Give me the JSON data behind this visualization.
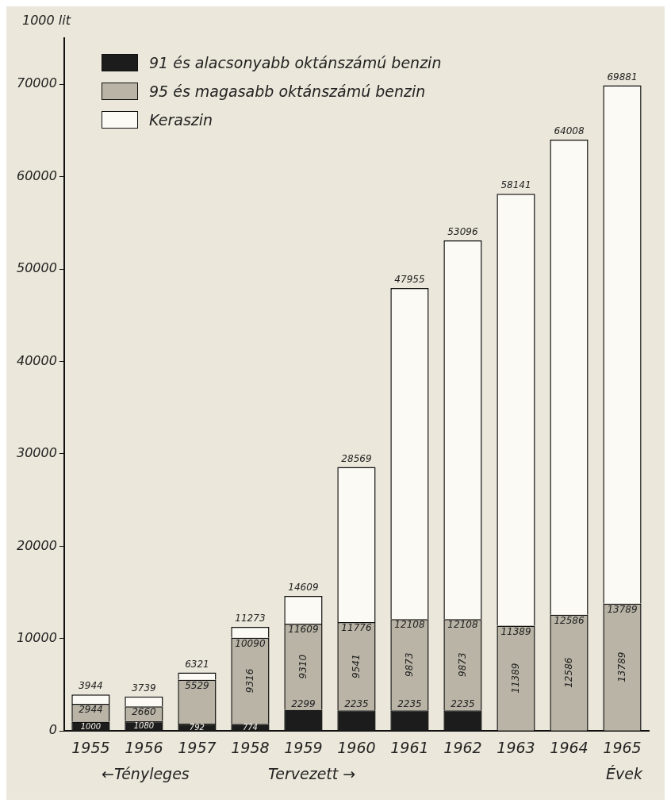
{
  "chart_data": {
    "type": "bar",
    "stacked": true,
    "ylabel": "1000 lit",
    "xlabel": "Évek",
    "categories": [
      "1955",
      "1956",
      "1957",
      "1958",
      "1959",
      "1960",
      "1961",
      "1962",
      "1963",
      "1964",
      "1965"
    ],
    "series": [
      {
        "name": "91 és alacsonyabb oktánszámú benzin",
        "color": "#1c1c1c",
        "values": [
          1000,
          1080,
          792,
          774,
          2299,
          2235,
          2235,
          2235,
          null,
          null,
          null
        ],
        "value_labels": [
          "1000",
          "1080",
          "792",
          "774",
          "2299",
          "2235",
          "2235",
          "2235",
          null,
          null,
          null
        ]
      },
      {
        "name": "95 és magasabb oktánszámú benzin",
        "color": "#b9b4a6",
        "values": [
          1944,
          1580,
          4737,
          9316,
          9310,
          9541,
          9873,
          9873,
          11389,
          12586,
          13789
        ],
        "value_labels": [
          null,
          null,
          null,
          "9316",
          "9310",
          "9541",
          "9873",
          "9873",
          "11389",
          "12586",
          "13789"
        ]
      },
      {
        "name": "Keraszin",
        "color": "#fbfaf5",
        "values": [
          1000,
          1079,
          792,
          1183,
          3000,
          16793,
          35847,
          40988,
          46752,
          51422,
          56092
        ]
      }
    ],
    "totals": [
      "3944",
      "3739",
      "6321",
      "11273",
      "14609",
      "28569",
      "47955",
      "53096",
      "58141",
      "64008",
      "69881"
    ],
    "ylim": [
      0,
      75000
    ],
    "yticks": [
      0,
      10000,
      20000,
      30000,
      40000,
      50000,
      60000,
      70000
    ],
    "grid": false,
    "legend": "top left",
    "annotations": [
      {
        "text": "2944",
        "x": "1955",
        "y": 2944
      },
      {
        "text": "2660",
        "x": "1956",
        "y": 2660
      },
      {
        "text": "5529",
        "x": "1957",
        "y": 5529
      },
      {
        "text": "10090",
        "x": "1958",
        "y": 10090
      },
      {
        "text": "11609",
        "x": "1959",
        "y": 11609
      },
      {
        "text": "11776",
        "x": "1960",
        "y": 11776
      },
      {
        "text": "12108",
        "x": "1961",
        "y": 12108
      },
      {
        "text": "12108",
        "x": "1962",
        "y": 12108
      },
      {
        "text": "11389",
        "x": "1963",
        "y": 11389
      },
      {
        "text": "12586",
        "x": "1964",
        "y": 12586
      },
      {
        "text": "13789",
        "x": "1965",
        "y": 13789
      },
      "←Tényleges",
      "Tervezett →"
    ]
  }
}
